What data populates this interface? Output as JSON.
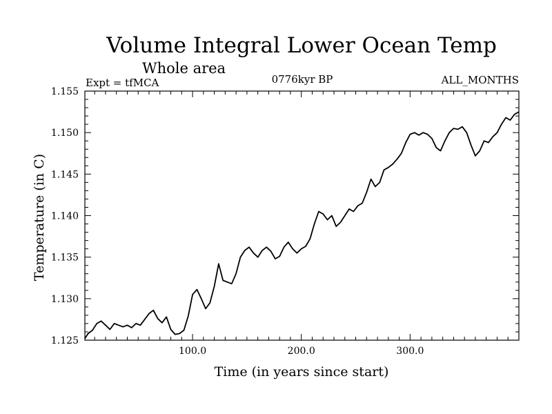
{
  "header": {
    "title": "Volume Integral Lower Ocean Temp",
    "subtitle": "Whole area",
    "left_label": "Expt = tfMCA",
    "center_label": "0776kyr BP",
    "right_label": "ALL_MONTHS"
  },
  "chart_data": {
    "type": "line",
    "title": "Volume Integral Lower Ocean Temp",
    "subtitle": "Whole area",
    "xlabel": "Time (in years since start)",
    "ylabel": "Temperature (in C)",
    "xlim": [
      1,
      400
    ],
    "ylim": [
      1.125,
      1.155
    ],
    "x_ticks": [
      100.0,
      200.0,
      300.0
    ],
    "x_tick_labels": [
      "100.0",
      "200.0",
      "300.0"
    ],
    "y_ticks": [
      1.125,
      1.13,
      1.135,
      1.14,
      1.145,
      1.15,
      1.155
    ],
    "y_tick_labels": [
      "1.125",
      "1.130",
      "1.135",
      "1.140",
      "1.145",
      "1.150",
      "1.155"
    ],
    "grid": false,
    "series": [
      {
        "color": "#000000",
        "x": [
          1,
          4,
          8,
          12,
          16,
          20,
          24,
          28,
          32,
          36,
          40,
          44,
          48,
          52,
          56,
          60,
          64,
          68,
          72,
          76,
          80,
          84,
          88,
          92,
          96,
          100,
          104,
          108,
          112,
          116,
          120,
          124,
          128,
          132,
          136,
          140,
          144,
          148,
          152,
          156,
          160,
          164,
          168,
          172,
          176,
          180,
          184,
          188,
          192,
          196,
          200,
          204,
          208,
          212,
          216,
          220,
          224,
          228,
          232,
          236,
          240,
          244,
          248,
          252,
          256,
          260,
          264,
          268,
          272,
          276,
          280,
          284,
          288,
          292,
          296,
          300,
          304,
          308,
          312,
          316,
          320,
          324,
          328,
          332,
          336,
          340,
          344,
          348,
          352,
          356,
          360,
          364,
          368,
          372,
          376,
          380,
          384,
          388,
          392,
          396,
          400
        ],
        "y": [
          1.1252,
          1.1258,
          1.1262,
          1.127,
          1.1273,
          1.1268,
          1.1263,
          1.127,
          1.1268,
          1.1266,
          1.1268,
          1.1265,
          1.127,
          1.1268,
          1.1275,
          1.1282,
          1.1286,
          1.1276,
          1.1271,
          1.1278,
          1.1263,
          1.1257,
          1.1258,
          1.1262,
          1.1279,
          1.1305,
          1.1311,
          1.13,
          1.1288,
          1.1295,
          1.1315,
          1.1342,
          1.1322,
          1.132,
          1.1318,
          1.133,
          1.135,
          1.1358,
          1.1362,
          1.1355,
          1.135,
          1.1358,
          1.1362,
          1.1357,
          1.1348,
          1.1351,
          1.1362,
          1.1368,
          1.136,
          1.1355,
          1.136,
          1.1363,
          1.1372,
          1.139,
          1.1405,
          1.1402,
          1.1395,
          1.14,
          1.1387,
          1.1392,
          1.14,
          1.1408,
          1.1405,
          1.1412,
          1.1415,
          1.1428,
          1.1444,
          1.1435,
          1.144,
          1.1455,
          1.1458,
          1.1462,
          1.1468,
          1.1475,
          1.1488,
          1.1498,
          1.15,
          1.1497,
          1.15,
          1.1498,
          1.1493,
          1.1482,
          1.1478,
          1.149,
          1.15,
          1.1505,
          1.1504,
          1.1507,
          1.15,
          1.1485,
          1.1472,
          1.1478,
          1.149,
          1.1488,
          1.1495,
          1.15,
          1.151,
          1.1518,
          1.1515,
          1.1522,
          1.1525
        ]
      }
    ]
  }
}
